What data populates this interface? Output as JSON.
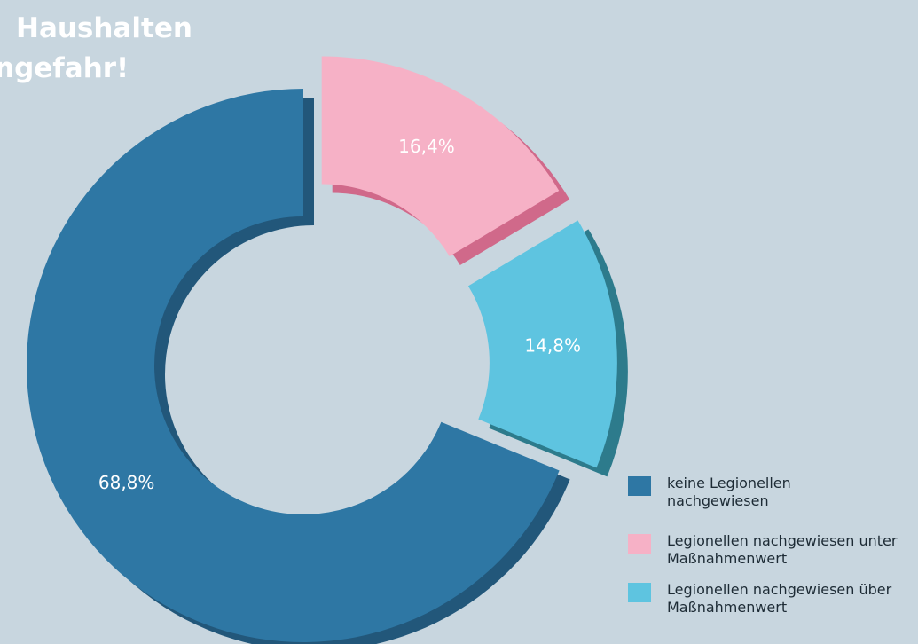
{
  "chart_data": {
    "type": "donut",
    "title_lines": [
      "Haushalten",
      "ngefahr!"
    ],
    "categories": [
      "keine Legionellen nachgewiesen",
      "Legionellen nachgewiesen unter Maßnahmenwert",
      "Legionellen nachgewiesen über Maßnahmenwert"
    ],
    "values": [
      68.8,
      16.4,
      14.8
    ],
    "value_labels": [
      "68,8%",
      "16,4%",
      "14,8%"
    ],
    "colors": [
      "#2e77a4",
      "#f6b1c6",
      "#5ec4e0"
    ],
    "side_colors": [
      "#22577a",
      "#d0698a",
      "#2d7b8c"
    ]
  }
}
